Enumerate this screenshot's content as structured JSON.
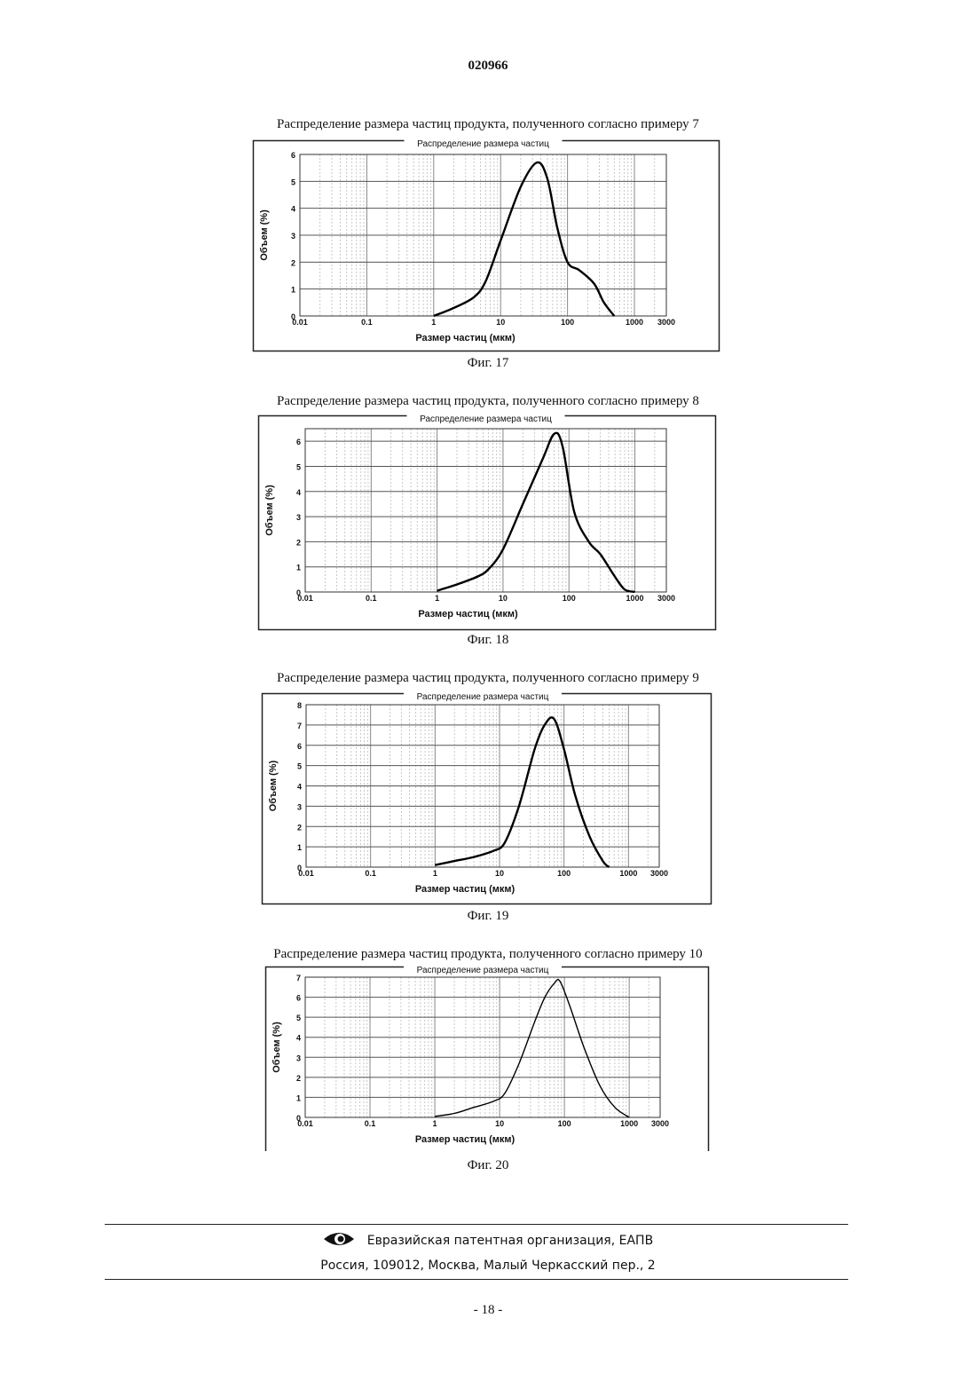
{
  "header": {
    "doc_number": "020966"
  },
  "figures": [
    {
      "caption": "Распределение размера частиц продукта, полученного согласно примеру 7",
      "fig_label": "Фиг. 17",
      "chart_title": "Распределение размера частиц",
      "xlabel": "Размер частиц (мкм)",
      "ylabel": "Объем (%)",
      "x_tick_labels": [
        "0.01",
        "0.1",
        "1",
        "10",
        "100",
        "1000",
        "3000"
      ],
      "y_tick_labels": [
        "0",
        "1",
        "2",
        "3",
        "4",
        "5",
        "6"
      ]
    },
    {
      "caption": "Распределение размера частиц продукта, полученного согласно примеру 8",
      "fig_label": "Фиг. 18",
      "chart_title": "Распределение размера частиц",
      "xlabel": "Размер частиц (мкм)",
      "ylabel": "Объем (%)",
      "x_tick_labels": [
        "0.01",
        "0.1",
        "1",
        "10",
        "100",
        "1000",
        "3000"
      ],
      "y_tick_labels": [
        "0",
        "1",
        "2",
        "3",
        "4",
        "5",
        "6"
      ]
    },
    {
      "caption": "Распределение размера частиц продукта, полученного согласно примеру 9",
      "fig_label": "Фиг. 19",
      "chart_title": "Распределение размера частиц",
      "xlabel": "Размер частиц (мкм)",
      "ylabel": "Объем (%)",
      "x_tick_labels": [
        "0.01",
        "0.1",
        "1",
        "10",
        "100",
        "1000",
        "3000"
      ],
      "y_tick_labels": [
        "0",
        "1",
        "2",
        "3",
        "4",
        "5",
        "6",
        "7",
        "8"
      ]
    },
    {
      "caption": "Распределение размера частиц продукта, полученного согласно примеру 10",
      "fig_label": "Фиг. 20",
      "chart_title": "Распределение размера частиц",
      "xlabel": "Размер частиц (мкм)",
      "ylabel": "Объем (%)",
      "x_tick_labels": [
        "0.01",
        "0.1",
        "1",
        "10",
        "100",
        "1000",
        "3000"
      ],
      "y_tick_labels": [
        "0",
        "1",
        "2",
        "3",
        "4",
        "5",
        "6",
        "7"
      ]
    }
  ],
  "chart_data": [
    {
      "type": "line",
      "title": "Распределение размера частиц",
      "xlabel": "Размер частиц (мкм)",
      "ylabel": "Объем (%)",
      "xscale": "log",
      "xlim": [
        0.01,
        3000
      ],
      "ylim": [
        0,
        6
      ],
      "grid": true,
      "series": [
        {
          "x": [
            1,
            2,
            4,
            6,
            10,
            20,
            35,
            50,
            70,
            100,
            150,
            250,
            350,
            500
          ],
          "y": [
            0,
            0.3,
            0.7,
            1.3,
            2.8,
            4.8,
            5.7,
            5.1,
            3.3,
            2.0,
            1.7,
            1.2,
            0.5,
            0
          ]
        }
      ]
    },
    {
      "type": "line",
      "title": "Распределение размера частиц",
      "xlabel": "Размер частиц (мкм)",
      "ylabel": "Объем (%)",
      "xscale": "log",
      "xlim": [
        0.01,
        3000
      ],
      "ylim": [
        0,
        6.5
      ],
      "grid": true,
      "series": [
        {
          "x": [
            1,
            2,
            4,
            6,
            10,
            20,
            40,
            60,
            80,
            120,
            200,
            300,
            500,
            700,
            1000
          ],
          "y": [
            0.05,
            0.3,
            0.6,
            0.9,
            1.7,
            3.5,
            5.3,
            6.3,
            5.8,
            3.2,
            2.0,
            1.5,
            0.6,
            0.1,
            0
          ]
        }
      ]
    },
    {
      "type": "line",
      "title": "Распределение размера частиц",
      "xlabel": "Размер частиц (мкм)",
      "ylabel": "Объем (%)",
      "xscale": "log",
      "xlim": [
        0.01,
        3000
      ],
      "ylim": [
        0,
        8
      ],
      "grid": true,
      "series": [
        {
          "x": [
            1,
            2,
            4,
            8,
            12,
            20,
            35,
            50,
            70,
            100,
            150,
            250,
            400,
            500
          ],
          "y": [
            0.1,
            0.3,
            0.5,
            0.8,
            1.2,
            3.0,
            5.8,
            7.0,
            7.3,
            5.8,
            3.5,
            1.5,
            0.3,
            0
          ]
        }
      ]
    },
    {
      "type": "line",
      "title": "Распределение размера частиц",
      "xlabel": "Размер частиц (мкм)",
      "ylabel": "Объем (%)",
      "xscale": "log",
      "xlim": [
        0.01,
        3000
      ],
      "ylim": [
        0,
        7
      ],
      "grid": true,
      "series": [
        {
          "x": [
            1,
            2,
            4,
            8,
            12,
            20,
            35,
            50,
            70,
            85,
            120,
            200,
            350,
            600,
            1000
          ],
          "y": [
            0.05,
            0.2,
            0.5,
            0.8,
            1.2,
            2.7,
            4.8,
            6.0,
            6.7,
            6.8,
            5.6,
            3.5,
            1.6,
            0.5,
            0
          ]
        }
      ]
    }
  ],
  "footer": {
    "org": "Евразийская патентная организация, ЕАПВ",
    "address": "Россия, 109012, Москва, Малый Черкасский пер., 2",
    "page_number": "- 18 -"
  },
  "style": {
    "ink": "#111111",
    "grid": "#bbbbbb",
    "curve": "#000000"
  }
}
